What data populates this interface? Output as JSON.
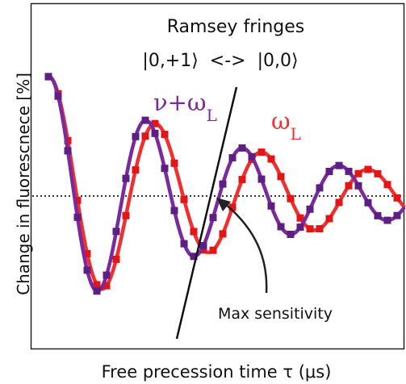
{
  "chart_data": {
    "type": "line",
    "title_line1": "Ramsey fringes",
    "title_line2": "|0,+1⟩  <->  |0,0⟩",
    "xlabel": "Free precession time τ (μs)",
    "ylabel": "Change in fluorescnece [%]",
    "grid": false,
    "baseline": "dotted horizontal line at zero change",
    "annotation": "Max sensitivity",
    "series": [
      {
        "name": "ν+ωL",
        "label_main": "ν+ω",
        "label_sub": "L",
        "color": "#7b2a9e",
        "marker_color": "#5e1f84",
        "style": "solid line with square markers",
        "model": {
          "amplitude": 1.0,
          "decay": 0.0038,
          "omega": 0.0525,
          "phase": -0.22
        }
      },
      {
        "name": "ωL",
        "label_main": "ω",
        "label_sub": "L",
        "color": "#f03030",
        "marker_color": "#e21616",
        "style": "solid line with square markers",
        "model": {
          "amplitude": 1.0,
          "decay": 0.0038,
          "omega": 0.0477,
          "phase": -0.2
        }
      }
    ]
  }
}
